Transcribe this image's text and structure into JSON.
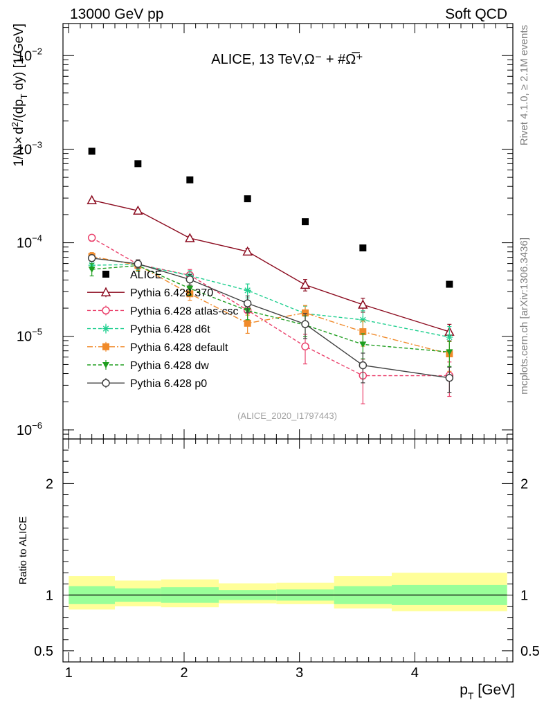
{
  "header": {
    "left": "13000 GeV pp",
    "right": "Soft QCD"
  },
  "side_labels": {
    "top": "Rivet 4.1.0, ≥ 2.1M events",
    "bottom": "mcplots.cern.ch [arXiv:1306.3436]"
  },
  "chart_data": {
    "type": "scatter",
    "title": "ALICE, 13 TeV,Ω⁻ + #Ω̅⁺",
    "analysis_tag": "(ALICE_2020_I1797443)",
    "xlabel": "p_T [GeV]",
    "ylabel": "1/N × d²/(dp_T dy) [1/GeV]",
    "ratio_ylabel": "Ratio to ALICE",
    "xlim": [
      0.95,
      4.85
    ],
    "ylim": [
      8e-07,
      0.022
    ],
    "yscale": "log",
    "ratio_ylim": [
      0.4,
      2.4
    ],
    "x_ticks": [
      1,
      2,
      3,
      4
    ],
    "y_tick_labels": [
      {
        "value": 1e-06,
        "mant": "10",
        "exp": "−6"
      },
      {
        "value": 1e-05,
        "mant": "10",
        "exp": "−5"
      },
      {
        "value": 0.0001,
        "mant": "10",
        "exp": "−4"
      },
      {
        "value": 0.001,
        "mant": "10",
        "exp": "−3"
      },
      {
        "value": 0.01,
        "mant": "10",
        "exp": "−2"
      }
    ],
    "ratio_ticks": [
      {
        "value": 0.5,
        "label": "0.5"
      },
      {
        "value": 1,
        "label": "1"
      },
      {
        "value": 2,
        "label": "2"
      }
    ],
    "reference": {
      "name": "ALICE",
      "x": [
        1.2,
        1.6,
        2.05,
        2.55,
        3.05,
        3.55,
        4.3
      ],
      "y": [
        0.00095,
        0.0007,
        0.00047,
        0.000295,
        0.000168,
        8.8e-05,
        3.6e-05
      ]
    },
    "ratio_bands": {
      "x_edges": [
        1.0,
        1.4,
        1.8,
        2.3,
        2.8,
        3.3,
        3.8,
        4.8
      ],
      "inner": [
        [
          0.92,
          1.08
        ],
        [
          0.94,
          1.06
        ],
        [
          0.93,
          1.07
        ],
        [
          0.955,
          1.045
        ],
        [
          0.95,
          1.05
        ],
        [
          0.92,
          1.08
        ],
        [
          0.91,
          1.09
        ]
      ],
      "outer": [
        [
          0.87,
          1.17
        ],
        [
          0.9,
          1.13
        ],
        [
          0.89,
          1.14
        ],
        [
          0.925,
          1.105
        ],
        [
          0.92,
          1.11
        ],
        [
          0.88,
          1.17
        ],
        [
          0.855,
          1.2
        ]
      ]
    },
    "series": [
      {
        "name": "Pythia 6.428 370",
        "color": "#8b0a1e",
        "dash": "",
        "marker": "triangle-open",
        "y": [
          0.000285,
          0.00022,
          0.000112,
          8.05e-05,
          3.55e-05,
          2.18e-05,
          1.12e-05
        ],
        "rel_err": [
          0.03,
          0.04,
          0.05,
          0.08,
          0.14,
          0.17,
          0.2
        ]
      },
      {
        "name": "Pythia 6.428 atlas-csc",
        "color": "#ea3f6a",
        "dash": "5,3",
        "marker": "circle-open",
        "y": [
          0.000113,
          5.88e-05,
          4.5e-05,
          1.9e-05,
          7.8e-06,
          3.8e-06,
          3.8e-06
        ],
        "rel_err": [
          0.08,
          0.12,
          0.15,
          0.25,
          0.35,
          0.5,
          0.4
        ]
      },
      {
        "name": "Pythia 6.428 d6t",
        "color": "#1fcf8f",
        "dash": "5,3",
        "marker": "star",
        "y": [
          5.75e-05,
          5.85e-05,
          4.45e-05,
          3.1e-05,
          1.75e-05,
          1.5e-05,
          9.8e-06
        ],
        "rel_err": [
          0.1,
          0.12,
          0.13,
          0.17,
          0.2,
          0.25,
          0.3
        ]
      },
      {
        "name": "Pythia 6.428 default",
        "color": "#f08a2a",
        "dash": "8,3,2,3",
        "marker": "square",
        "y": [
          7.15e-05,
          5.75e-05,
          2.85e-05,
          1.38e-05,
          1.78e-05,
          1.12e-05,
          6.5e-06
        ],
        "rel_err": [
          0.1,
          0.12,
          0.15,
          0.22,
          0.2,
          0.3,
          0.35
        ]
      },
      {
        "name": "Pythia 6.428 dw",
        "color": "#1f9e1f",
        "dash": "5,3",
        "marker": "triangle-down",
        "y": [
          5.2e-05,
          5.7e-05,
          3.25e-05,
          1.88e-05,
          1.32e-05,
          8.2e-06,
          6.8e-06
        ],
        "rel_err": [
          0.15,
          0.13,
          0.15,
          0.2,
          0.25,
          0.3,
          0.3
        ]
      },
      {
        "name": "Pythia 6.428 p0",
        "color": "#404040",
        "dash": "",
        "marker": "circle-open",
        "y": [
          6.85e-05,
          5.95e-05,
          4.05e-05,
          2.25e-05,
          1.35e-05,
          4.9e-06,
          3.6e-06
        ],
        "rel_err": [
          0.08,
          0.1,
          0.13,
          0.2,
          0.3,
          0.35,
          0.3
        ]
      }
    ]
  }
}
